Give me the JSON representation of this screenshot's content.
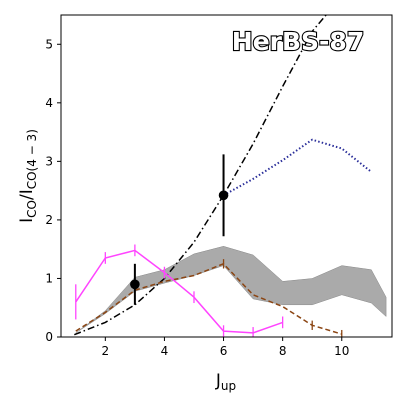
{
  "chart_data": {
    "type": "line",
    "annotation": "HerBS-87",
    "xlabel": {
      "main": "J",
      "sub": "up"
    },
    "ylabel": {
      "main": "I",
      "sub1": "CO",
      "mid": "/I",
      "sub2": "CO(4 − 3)"
    },
    "xlim": [
      0.5,
      11.7
    ],
    "ylim": [
      0,
      5.5
    ],
    "x_ticks": [
      2,
      4,
      6,
      8,
      10
    ],
    "y_ticks": [
      0,
      1,
      2,
      3,
      4,
      5
    ],
    "grid": false,
    "band": {
      "color": "#aaaaaa",
      "x": [
        1,
        2,
        3,
        4,
        5,
        6,
        7,
        8,
        9,
        10,
        11,
        11.5
      ],
      "upper": [
        0.07,
        0.45,
        1.02,
        1.15,
        1.42,
        1.55,
        1.4,
        0.95,
        1.0,
        1.22,
        1.15,
        0.68
      ],
      "lower": [
        0.07,
        0.4,
        0.78,
        0.92,
        1.05,
        1.22,
        0.65,
        0.55,
        0.55,
        0.72,
        0.58,
        0.35
      ]
    },
    "observations": {
      "color": "#000000",
      "points": [
        {
          "x": 3,
          "y": 0.9,
          "err_low": 0.35,
          "err_high": 0.35
        },
        {
          "x": 6,
          "y": 2.42,
          "err_low": 0.7,
          "err_high": 0.7
        }
      ]
    },
    "series": [
      {
        "style": "dashdot",
        "color": "#000000",
        "x": [
          0.95,
          2,
          3,
          4,
          5,
          6,
          7,
          8,
          9,
          9.55
        ],
        "y": [
          0.04,
          0.25,
          0.55,
          1.0,
          1.62,
          2.42,
          3.3,
          4.28,
          5.22,
          5.55
        ]
      },
      {
        "style": "dotted",
        "color": "#2b2f9a",
        "x": [
          6,
          7,
          8,
          9,
          10,
          11
        ],
        "y": [
          2.42,
          2.7,
          3.02,
          3.37,
          3.22,
          2.82
        ]
      },
      {
        "style": "dashed",
        "color": "#8b4513",
        "x": [
          1,
          2,
          3,
          4,
          5,
          6,
          7,
          8,
          9,
          10
        ],
        "y": [
          0.1,
          0.42,
          0.8,
          0.95,
          1.05,
          1.25,
          0.72,
          0.52,
          0.2,
          0.05
        ],
        "errors": [
          0,
          0,
          0,
          0,
          0,
          0.08,
          0,
          0,
          0.08,
          0.07
        ]
      },
      {
        "style": "solid",
        "color": "#ff44ff",
        "x": [
          1,
          2,
          3,
          4,
          5,
          6,
          7,
          8
        ],
        "y": [
          0.6,
          1.35,
          1.48,
          1.1,
          0.68,
          0.1,
          0.07,
          0.25
        ],
        "errors": [
          0.3,
          0.1,
          0.1,
          0.1,
          0.1,
          0.1,
          0.1,
          0.1
        ]
      }
    ]
  }
}
